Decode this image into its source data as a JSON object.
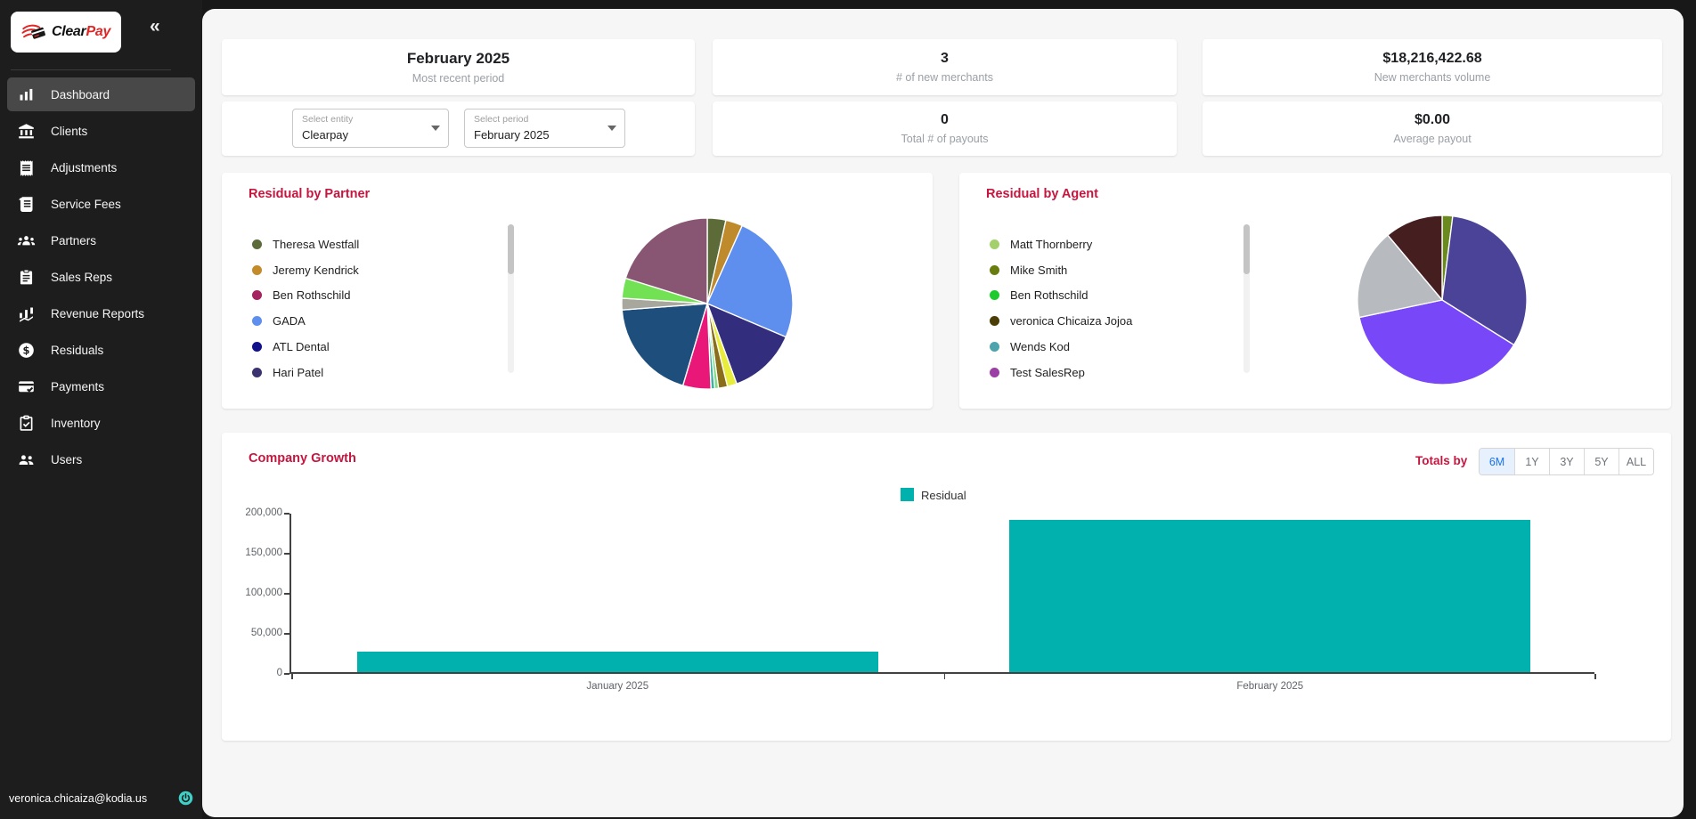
{
  "brand": {
    "name_black": "Clear",
    "name_red": "Pay",
    "accent_red": "#e02726"
  },
  "sidebar": {
    "collapse_icon": "«",
    "items": [
      {
        "label": "Dashboard",
        "icon": "bar-chart-icon",
        "active": true
      },
      {
        "label": "Clients",
        "icon": "bank-icon",
        "active": false
      },
      {
        "label": "Adjustments",
        "icon": "receipt-icon",
        "active": false
      },
      {
        "label": "Service Fees",
        "icon": "receipt-long-icon",
        "active": false
      },
      {
        "label": "Partners",
        "icon": "groups-icon",
        "active": false
      },
      {
        "label": "Sales Reps",
        "icon": "clipboard-icon",
        "active": false
      },
      {
        "label": "Revenue Reports",
        "icon": "waterfall-chart-icon",
        "active": false
      },
      {
        "label": "Residuals",
        "icon": "dollar-circle-icon",
        "active": false
      },
      {
        "label": "Payments",
        "icon": "card-check-icon",
        "active": false
      },
      {
        "label": "Inventory",
        "icon": "inventory-icon",
        "active": false
      },
      {
        "label": "Users",
        "icon": "people-icon",
        "active": false
      }
    ],
    "user_email": "veronica.chicaiza@kodia.us",
    "power_icon_color": "#3ecfc6"
  },
  "summary": {
    "period_title": "February 2025",
    "period_caption": "Most recent period",
    "entity_select": {
      "label": "Select entity",
      "value": "Clearpay"
    },
    "period_select": {
      "label": "Select period",
      "value": "February 2025"
    },
    "stats": [
      {
        "value": "3",
        "caption": "# of new merchants"
      },
      {
        "value": "0",
        "caption": "Total # of payouts"
      },
      {
        "value": "$18,216,422.68",
        "caption": "New merchants volume"
      },
      {
        "value": "$0.00",
        "caption": "Average payout"
      }
    ]
  },
  "partner_card": {
    "title": "Residual by Partner",
    "legend": [
      {
        "name": "Theresa Westfall",
        "color": "#5d6b39"
      },
      {
        "name": "Jeremy Kendrick",
        "color": "#c38b2a"
      },
      {
        "name": "Ben Rothschild",
        "color": "#a6215f"
      },
      {
        "name": "GADA",
        "color": "#5e8fee"
      },
      {
        "name": "ATL Dental",
        "color": "#11118b"
      },
      {
        "name": "Hari Patel",
        "color": "#3a336f"
      }
    ]
  },
  "agent_card": {
    "title": "Residual by Agent",
    "legend": [
      {
        "name": "Matt Thornberry",
        "color": "#a3d06a"
      },
      {
        "name": "Mike Smith",
        "color": "#697d0f"
      },
      {
        "name": "Ben Rothschild",
        "color": "#1ecb2f"
      },
      {
        "name": "veronica Chicaiza Jojoa",
        "color": "#4c3d07"
      },
      {
        "name": "Wends Kod",
        "color": "#4da4ad"
      },
      {
        "name": "Test SalesRep",
        "color": "#9b3fa5"
      }
    ]
  },
  "growth": {
    "title": "Company Growth",
    "totals_by_label": "Totals by",
    "range_buttons": [
      "6M",
      "1Y",
      "3Y",
      "5Y",
      "ALL"
    ],
    "selected_range": "6M",
    "legend_label": "Residual",
    "bar_color": "#00b1ad"
  },
  "chart_data": [
    {
      "type": "pie",
      "title": "Residual by Partner",
      "legend_position": "left",
      "slices": [
        {
          "label": "Theresa Westfall",
          "value": 3.5,
          "color": "#5d6b39"
        },
        {
          "label": "Jeremy Kendrick",
          "value": 3.2,
          "color": "#bf8a2c"
        },
        {
          "label": "GADA",
          "value": 24.7,
          "color": "#5e8fee"
        },
        {
          "label": "Hari Patel",
          "value": 13.0,
          "color": "#322d7c"
        },
        {
          "label": "",
          "value": 1.8,
          "color": "#e7ec3d"
        },
        {
          "label": "",
          "value": 1.7,
          "color": "#8a6d1a"
        },
        {
          "label": "",
          "value": 0.7,
          "color": "#7fdc87"
        },
        {
          "label": "",
          "value": 0.7,
          "color": "#37b6a0"
        },
        {
          "label": "Ben Rothschild",
          "value": 5.3,
          "color": "#e81778"
        },
        {
          "label": "ATL Dental",
          "value": 19.2,
          "color": "#1d4e7c"
        },
        {
          "label": "",
          "value": 2.2,
          "color": "#a7a79e"
        },
        {
          "label": "",
          "value": 3.8,
          "color": "#72e254"
        },
        {
          "label": "",
          "value": 20.2,
          "color": "#885672"
        }
      ]
    },
    {
      "type": "pie",
      "title": "Residual by Agent",
      "legend_position": "left",
      "slices": [
        {
          "label": "",
          "value": 2.0,
          "color": "#6a8a1f"
        },
        {
          "label": "",
          "value": 31.9,
          "color": "#4a4398"
        },
        {
          "label": "",
          "value": 37.8,
          "color": "#7847f7"
        },
        {
          "label": "",
          "value": 17.2,
          "color": "#b7babf"
        },
        {
          "label": "",
          "value": 11.1,
          "color": "#451f1f"
        }
      ]
    },
    {
      "type": "bar",
      "title": "Company Growth",
      "categories": [
        "January 2025",
        "February 2025"
      ],
      "series": [
        {
          "name": "Residual",
          "values": [
            26000,
            190000
          ],
          "color": "#00b1ad"
        }
      ],
      "ylim": [
        0,
        200000
      ],
      "ytick_labels": [
        "200,000",
        "150,000",
        "100,000",
        "50,000",
        "0"
      ],
      "grid": false,
      "legend_position": "top"
    }
  ]
}
